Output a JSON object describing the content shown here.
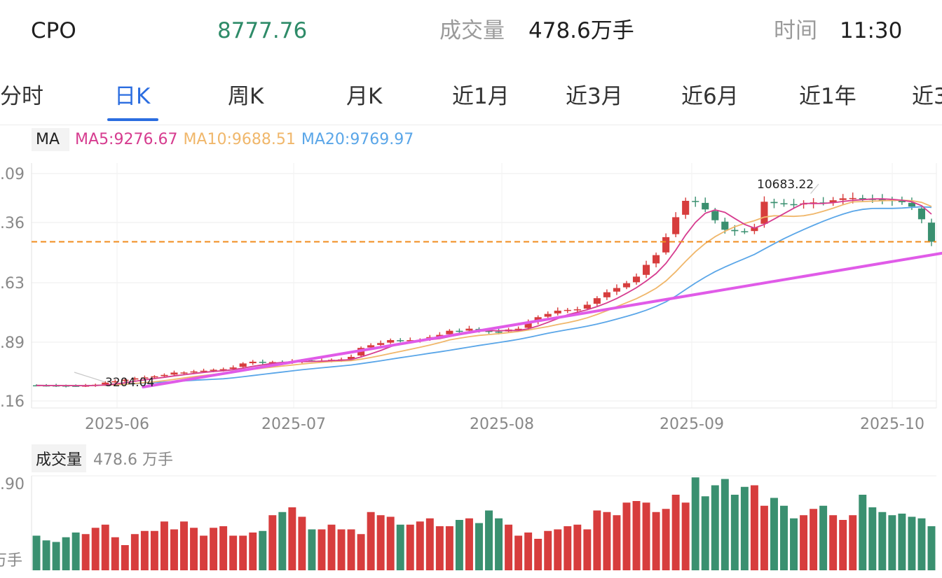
{
  "header": {
    "symbol": "CPO",
    "price": "8777.76",
    "volume_label": "成交量",
    "volume_value": "478.6万手",
    "time_label": "时间",
    "time_value": "11:30"
  },
  "tabs": [
    "分时",
    "日K",
    "周K",
    "月K",
    "近1月",
    "近3月",
    "近6月",
    "近1年",
    "近3"
  ],
  "active_tab": "日K",
  "legend": {
    "ma_label": "MA",
    "ma5": "MA5:9276.67",
    "ma10": "MA10:9688.51",
    "ma20": "MA20:9769.97"
  },
  "volume_legend": {
    "label": "成交量",
    "value": "478.6 万手"
  },
  "colors": {
    "up": "#d73d3d",
    "down": "#3a9070",
    "ma5": "#d63c8f",
    "ma10": "#f0b76b",
    "ma20": "#5aa6e8",
    "trendline": "#e05be8",
    "reference_line": "#f08c1e",
    "active_tab": "#2b6de0"
  },
  "chart_data": [
    {
      "type": "candlestick",
      "x_axis_labels": [
        "2025-06",
        "2025-07",
        "2025-08",
        "2025-09",
        "2025-10"
      ],
      "y_axis_labels": [
        ".09",
        ".36",
        ".63",
        ".89",
        ".16"
      ],
      "annotations": {
        "high": "10683.22",
        "low": "3204.04"
      },
      "reference_line_value": 8777.76,
      "trendline": [
        3204,
        8340
      ],
      "closes": [
        3264,
        3262,
        3259,
        3252,
        3246,
        3257,
        3292,
        3374,
        3427,
        3484,
        3538,
        3572,
        3615,
        3668,
        3758,
        3761,
        3802,
        3829,
        3866,
        3888,
        3954,
        4108,
        4175,
        4149,
        4162,
        4152,
        4190,
        4225,
        4206,
        4215,
        4248,
        4264,
        4361,
        4705,
        4807,
        4890,
        5004,
        4986,
        5004,
        5011,
        5119,
        5204,
        5363,
        5356,
        5443,
        5361,
        5331,
        5326,
        5409,
        5440,
        5683,
        5884,
        6009,
        6134,
        6163,
        6186,
        6361,
        6613,
        6841,
        7003,
        7188,
        7441,
        7892,
        8266,
        8956,
        9721,
        10350,
        10315,
        10020,
        9605,
        9240,
        9186,
        9167,
        9319,
        10315,
        10262,
        10225,
        10208,
        10250,
        10289,
        10277,
        10372,
        10446,
        10459,
        10425,
        10405,
        10385,
        10355,
        10297,
        10130,
        9642,
        8778
      ]
    },
    {
      "type": "bar",
      "y_axis_labels": [
        ".90",
        "万手"
      ],
      "values": [
        2.2,
        1.9,
        1.8,
        2.1,
        2.4,
        2.3,
        2.7,
        2.9,
        2.1,
        1.6,
        2.3,
        2.5,
        2.5,
        3.1,
        2.6,
        3.1,
        2.7,
        2.2,
        2.7,
        2.8,
        2.2,
        2.2,
        2.4,
        2.5,
        3.5,
        3.7,
        4.0,
        3.4,
        2.6,
        2.6,
        2.9,
        2.6,
        2.6,
        2.3,
        3.7,
        3.5,
        3.4,
        2.9,
        2.9,
        3.1,
        3.3,
        2.8,
        2.8,
        3.2,
        3.3,
        3.0,
        3.8,
        3.3,
        2.9,
        2.2,
        2.4,
        2.0,
        2.5,
        2.6,
        2.8,
        2.9,
        2.6,
        3.8,
        3.7,
        3.5,
        4.3,
        4.4,
        4.3,
        3.7,
        3.9,
        4.8,
        4.3,
        5.9,
        4.7,
        5.4,
        5.8,
        4.8,
        5.3,
        5.4,
        4.1,
        4.6,
        4.1,
        3.3,
        3.5,
        3.9,
        4.1,
        3.5,
        3.2,
        3.5,
        4.8,
        4.0,
        3.7,
        3.5,
        3.6,
        3.4,
        3.3,
        2.8
      ]
    }
  ]
}
